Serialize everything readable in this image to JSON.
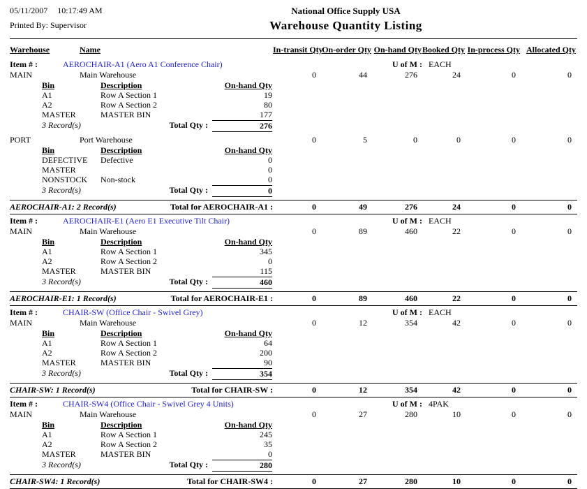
{
  "header": {
    "date": "05/11/2007",
    "time": "10:17:49 AM",
    "printed_by": "Printed By: Supervisor",
    "company": "National Office Supply USA",
    "title": "Warehouse Quantity Listing"
  },
  "labels": {
    "warehouse": "Warehouse",
    "name": "Name",
    "in_transit_qty": "In-transit Qty",
    "on_order_qty": "On-order Qty",
    "on_hand_qty": "On-hand Qty",
    "booked_qty": "Booked Qty",
    "in_process_qty": "In-process Qty",
    "allocated_qty": "Allocated Qty",
    "item_number": "Item # :",
    "uom": "U of M :",
    "bin": "Bin",
    "description": "Description",
    "bin_on_hand_qty": "On-hand Qty",
    "total_qty": "Total Qty :"
  },
  "colors": {
    "link": "#2222CC"
  },
  "items": [
    {
      "name": "AEROCHAIR-A1 (Aero A1 Conference Chair)",
      "uofm": "EACH",
      "warehouses": [
        {
          "code": "MAIN",
          "name": "Main Warehouse",
          "qtys": [
            "0",
            "44",
            "276",
            "24",
            "0",
            "0"
          ],
          "bins": [
            {
              "bin": "A1",
              "desc": "Row A Section 1",
              "qty": "19"
            },
            {
              "bin": "A2",
              "desc": "Row A Section 2",
              "qty": "80"
            },
            {
              "bin": "MASTER",
              "desc": "MASTER BIN",
              "qty": "177"
            }
          ],
          "records": "3 Record(s)",
          "total": "276"
        },
        {
          "code": "PORT",
          "name": "Port Warehouse",
          "qtys": [
            "0",
            "5",
            "0",
            "0",
            "0",
            "0"
          ],
          "bins": [
            {
              "bin": "DEFECTIVE",
              "desc": "Defective",
              "qty": "0"
            },
            {
              "bin": "MASTER",
              "desc": "",
              "qty": "0"
            },
            {
              "bin": "NONSTOCK",
              "desc": "Non-stock",
              "qty": "0"
            }
          ],
          "records": "3 Record(s)",
          "total": "0"
        }
      ],
      "summary_records": "AEROCHAIR-A1: 2 Record(s)",
      "summary_label": "Total for AEROCHAIR-A1 :",
      "summary_qtys": [
        "0",
        "49",
        "276",
        "24",
        "0",
        "0"
      ]
    },
    {
      "name": "AEROCHAIR-E1 (Aero E1 Executive Tilt Chair)",
      "uofm": "EACH",
      "warehouses": [
        {
          "code": "MAIN",
          "name": "Main Warehouse",
          "qtys": [
            "0",
            "89",
            "460",
            "22",
            "0",
            "0"
          ],
          "bins": [
            {
              "bin": "A1",
              "desc": "Row A Section 1",
              "qty": "345"
            },
            {
              "bin": "A2",
              "desc": "Row A Section 2",
              "qty": "0"
            },
            {
              "bin": "MASTER",
              "desc": "MASTER BIN",
              "qty": "115"
            }
          ],
          "records": "3 Record(s)",
          "total": "460"
        }
      ],
      "summary_records": "AEROCHAIR-E1: 1 Record(s)",
      "summary_label": "Total for AEROCHAIR-E1 :",
      "summary_qtys": [
        "0",
        "89",
        "460",
        "22",
        "0",
        "0"
      ]
    },
    {
      "name": "CHAIR-SW (Office Chair - Swivel Grey)",
      "uofm": "EACH",
      "warehouses": [
        {
          "code": "MAIN",
          "name": "Main Warehouse",
          "qtys": [
            "0",
            "12",
            "354",
            "42",
            "0",
            "0"
          ],
          "bins": [
            {
              "bin": "A1",
              "desc": "Row A Section 1",
              "qty": "64"
            },
            {
              "bin": "A2",
              "desc": "Row A Section 2",
              "qty": "200"
            },
            {
              "bin": "MASTER",
              "desc": "MASTER BIN",
              "qty": "90"
            }
          ],
          "records": "3 Record(s)",
          "total": "354"
        }
      ],
      "summary_records": "CHAIR-SW: 1 Record(s)",
      "summary_label": "Total for CHAIR-SW :",
      "summary_qtys": [
        "0",
        "12",
        "354",
        "42",
        "0",
        "0"
      ]
    },
    {
      "name": "CHAIR-SW4 (Office Chair - Swivel Grey 4 Units)",
      "uofm": "4PAK",
      "warehouses": [
        {
          "code": "MAIN",
          "name": "Main Warehouse",
          "qtys": [
            "0",
            "27",
            "280",
            "10",
            "0",
            "0"
          ],
          "bins": [
            {
              "bin": "A1",
              "desc": "Row A Section 1",
              "qty": "245"
            },
            {
              "bin": "A2",
              "desc": "Row A Section 2",
              "qty": "35"
            },
            {
              "bin": "MASTER",
              "desc": "MASTER BIN",
              "qty": "0"
            }
          ],
          "records": "3 Record(s)",
          "total": "280"
        }
      ],
      "summary_records": "CHAIR-SW4: 1 Record(s)",
      "summary_label": "Total for CHAIR-SW4 :",
      "summary_qtys": [
        "0",
        "27",
        "280",
        "10",
        "0",
        "0"
      ]
    }
  ]
}
